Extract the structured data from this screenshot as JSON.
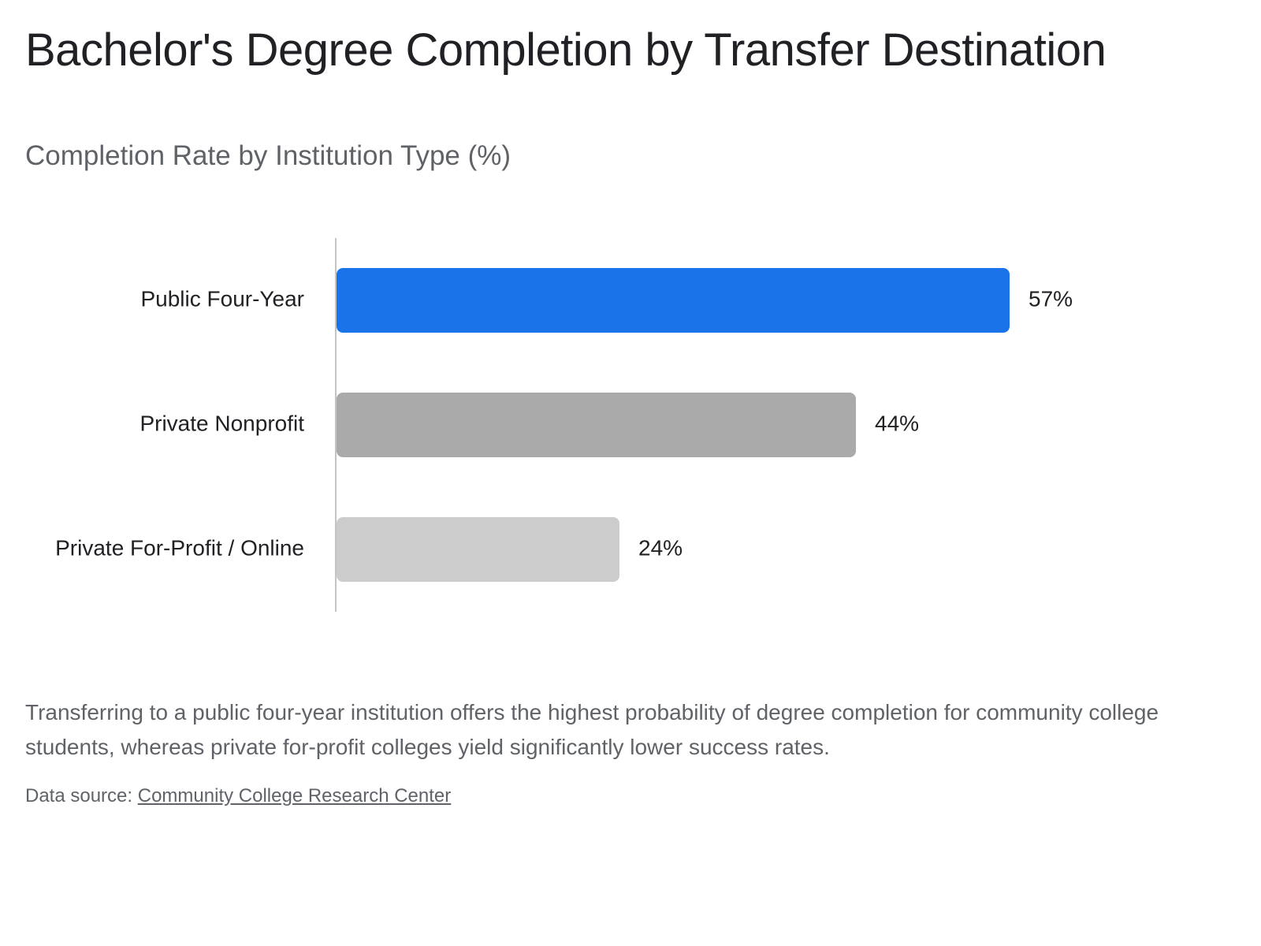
{
  "chart_data": {
    "type": "bar",
    "orientation": "horizontal",
    "title": "Bachelor's Degree Completion by Transfer Destination",
    "subtitle": "Completion Rate by Institution Type (%)",
    "categories": [
      "Public Four-Year",
      "Private Nonprofit",
      "Private For-Profit / Online"
    ],
    "values": [
      57,
      44,
      24
    ],
    "value_labels": [
      "57%",
      "44%",
      "24%"
    ],
    "colors": [
      "#1a73e8",
      "#aaaaaa",
      "#cccccc"
    ]
  },
  "text": {
    "caption": "Transferring to a public four-year institution offers the highest probability of degree completion for community college students, whereas private for-profit colleges yield significantly lower success rates.",
    "source_prefix": "Data source:",
    "source_link": "Community College Research Center"
  }
}
